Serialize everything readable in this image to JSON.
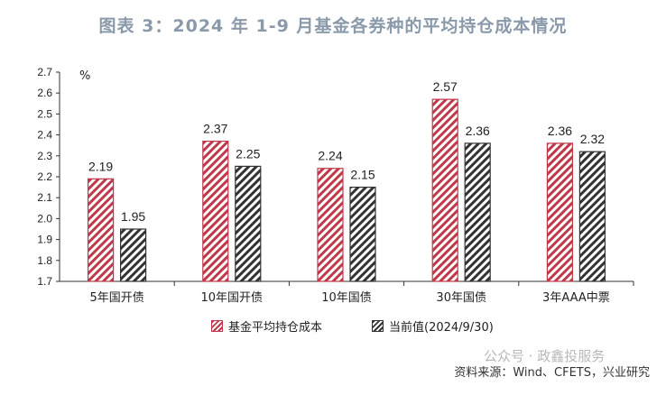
{
  "title": "图表 3：2024 年 1-9 月基金各券种的平均持仓成本情况",
  "source": "资料来源：Wind、CFETS，兴业研究",
  "watermark": "公众号 · 政鑫投服务",
  "chart_data": {
    "type": "bar",
    "categories": [
      "5年国开债",
      "10年国开债",
      "10年国债",
      "30年国债",
      "3年AAA中票"
    ],
    "series": [
      {
        "name": "基金平均持仓成本",
        "values": [
          2.19,
          2.37,
          2.24,
          2.57,
          2.36
        ],
        "color": "#c0394a"
      },
      {
        "name": "当前值(2024/9/30)",
        "values": [
          1.95,
          2.25,
          2.15,
          2.36,
          2.32
        ],
        "color": "#333333"
      }
    ],
    "ylabel": "%",
    "ylim": [
      1.7,
      2.7
    ],
    "yticks": [
      "1.7",
      "1.8",
      "1.9",
      "2.0",
      "2.1",
      "2.2",
      "2.3",
      "2.4",
      "2.5",
      "2.6",
      "2.7"
    ],
    "grid": false,
    "legend": "bottom"
  }
}
